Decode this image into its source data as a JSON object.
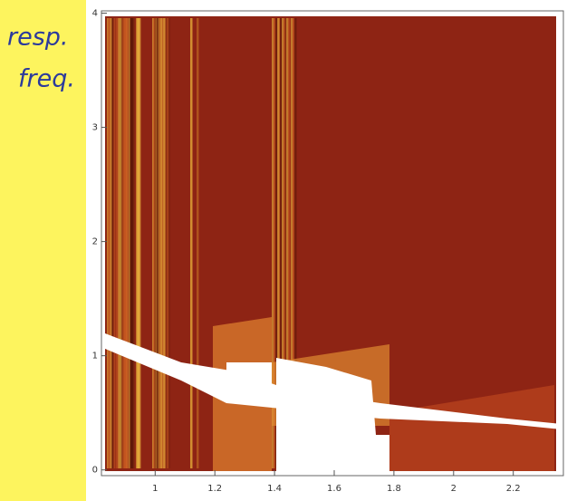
{
  "chart_data": {
    "type": "density",
    "annotations": [
      "resp.",
      "freq."
    ],
    "xlim": [
      0.82,
      2.38
    ],
    "xticks": [
      1.0,
      1.2,
      1.4,
      1.6,
      1.8,
      2.0,
      2.2
    ],
    "ylim": [
      -0.05,
      4.02
    ],
    "yticks": [
      0,
      1,
      2,
      3,
      4
    ],
    "color": "#8e2414"
  }
}
